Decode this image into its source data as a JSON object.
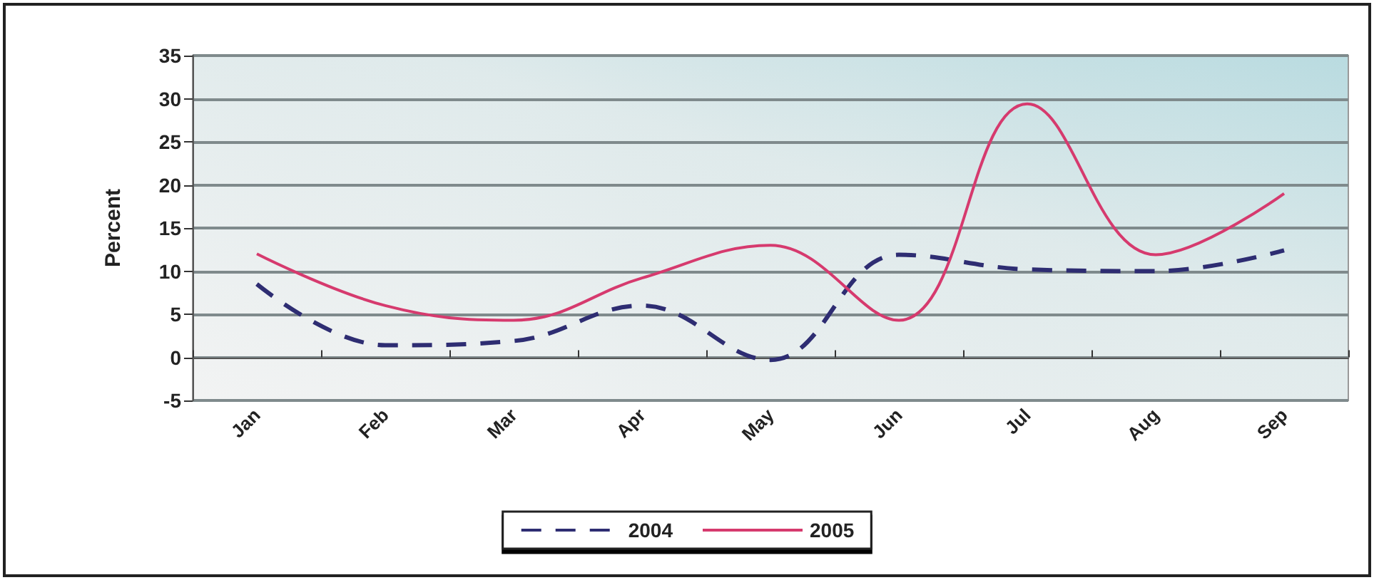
{
  "chart_data": {
    "type": "line",
    "ylabel": "Percent",
    "categories": [
      "Jan",
      "Feb",
      "Mar",
      "Apr",
      "May",
      "Jun",
      "Jul",
      "Aug",
      "Sep"
    ],
    "series": [
      {
        "name": "2004",
        "color": "#2e2d72",
        "line_style": "dashed",
        "values": [
          8.5,
          1.4,
          1.9,
          6,
          -0.3,
          11.9,
          10.2,
          10,
          12.4
        ]
      },
      {
        "name": "2005",
        "color": "#d63a6e",
        "line_style": "solid",
        "values": [
          12,
          6,
          4.3,
          9.2,
          13,
          4.3,
          29.4,
          11.9,
          19
        ]
      }
    ],
    "ylim": [
      -5,
      35
    ],
    "yticks": [
      -5,
      0,
      5,
      10,
      15,
      20,
      25,
      30,
      35
    ],
    "grid": "y",
    "legend": "bottom",
    "marker": "none"
  }
}
